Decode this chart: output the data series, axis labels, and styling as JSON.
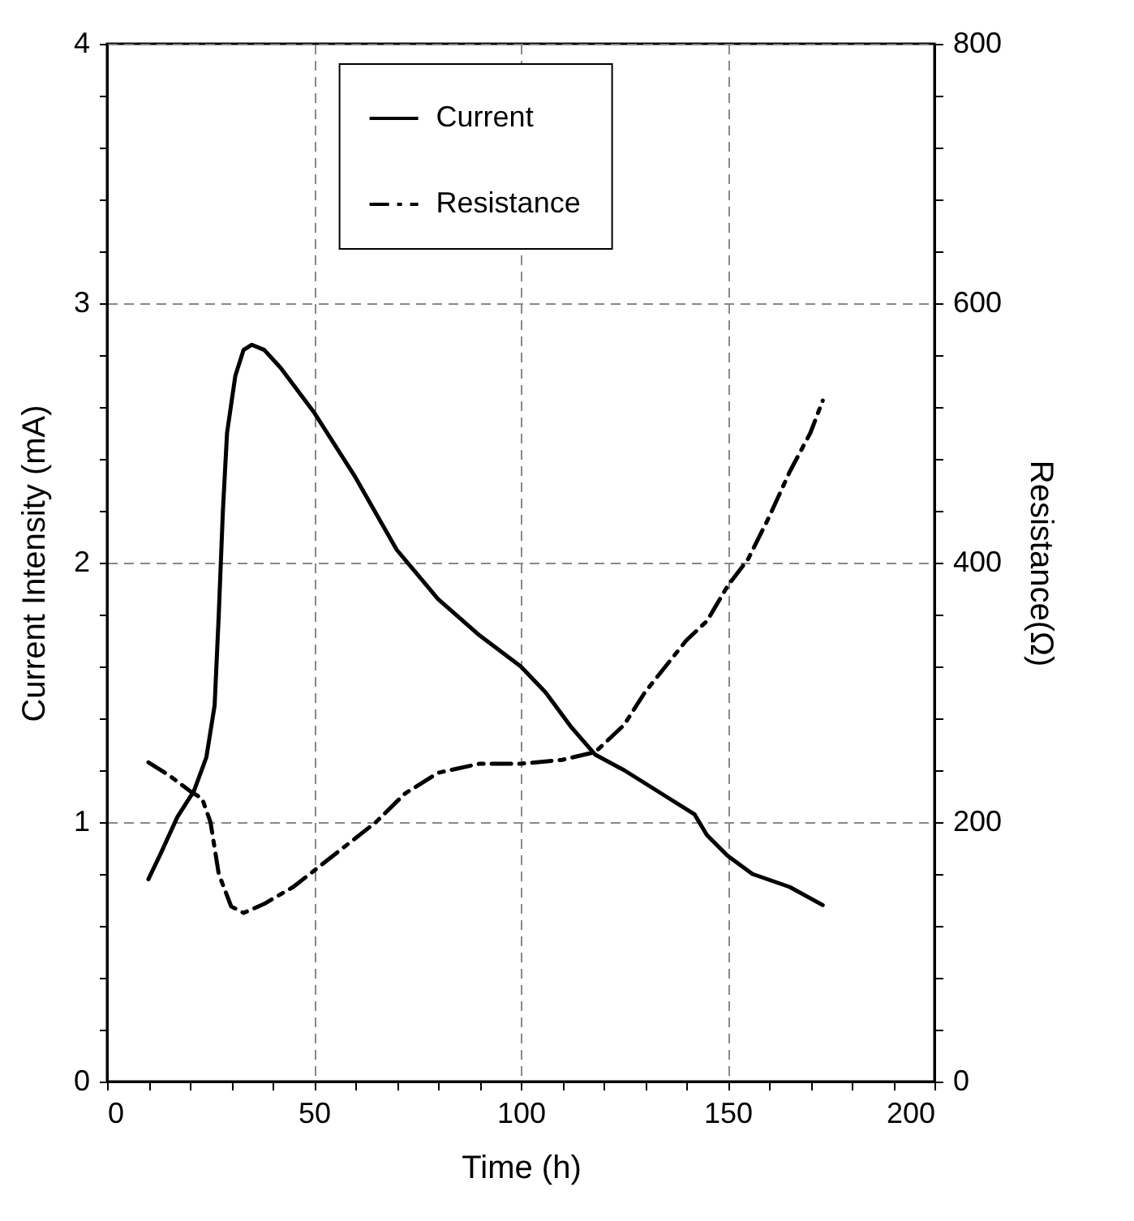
{
  "chart_data": {
    "type": "line",
    "xlabel": "Time (h)",
    "ylabel": "Current Intensity (mA)",
    "y2label": "Resistance(Ω)",
    "xlim": [
      0,
      200
    ],
    "xticks": [
      0,
      {
        "value": 10,
        "label": null
      },
      {
        "value": 20,
        "label": null
      },
      {
        "value": 30,
        "label": null
      },
      {
        "value": 40,
        "label": null
      },
      50,
      {
        "value": 60,
        "label": null
      },
      {
        "value": 70,
        "label": null
      },
      {
        "value": 80,
        "label": null
      },
      {
        "value": 90,
        "label": null
      },
      100,
      {
        "value": 110,
        "label": null
      },
      {
        "value": 120,
        "label": null
      },
      {
        "value": 130,
        "label": null
      },
      {
        "value": 140,
        "label": null
      },
      150,
      {
        "value": 160,
        "label": null
      },
      {
        "value": 170,
        "label": null
      },
      {
        "value": 180,
        "label": null
      },
      {
        "value": 190,
        "label": null
      },
      200
    ],
    "ylim": [
      0,
      4
    ],
    "yticks": [
      0,
      {
        "value": 0.2,
        "label": null
      },
      {
        "value": 0.4,
        "label": null
      },
      {
        "value": 0.6,
        "label": null
      },
      {
        "value": 0.8,
        "label": null
      },
      1,
      {
        "value": 1.2,
        "label": null
      },
      {
        "value": 1.4,
        "label": null
      },
      {
        "value": 1.6,
        "label": null
      },
      {
        "value": 1.8,
        "label": null
      },
      2,
      {
        "value": 2.2,
        "label": null
      },
      {
        "value": 2.4,
        "label": null
      },
      {
        "value": 2.6,
        "label": null
      },
      {
        "value": 2.8,
        "label": null
      },
      3,
      {
        "value": 3.2,
        "label": null
      },
      {
        "value": 3.4,
        "label": null
      },
      {
        "value": 3.6,
        "label": null
      },
      {
        "value": 3.8,
        "label": null
      },
      4
    ],
    "y2lim": [
      0,
      800
    ],
    "y2ticks": [
      0,
      {
        "value": 40,
        "label": null
      },
      {
        "value": 80,
        "label": null
      },
      {
        "value": 120,
        "label": null
      },
      {
        "value": 160,
        "label": null
      },
      200,
      {
        "value": 240,
        "label": null
      },
      {
        "value": 280,
        "label": null
      },
      {
        "value": 320,
        "label": null
      },
      {
        "value": 360,
        "label": null
      },
      400,
      {
        "value": 440,
        "label": null
      },
      {
        "value": 480,
        "label": null
      },
      {
        "value": 520,
        "label": null
      },
      {
        "value": 560,
        "label": null
      },
      600,
      {
        "value": 640,
        "label": null
      },
      {
        "value": 680,
        "label": null
      },
      {
        "value": 720,
        "label": null
      },
      {
        "value": 760,
        "label": null
      },
      800
    ],
    "grid": true,
    "legend": "top",
    "marker": "none",
    "series": [
      {
        "name": "Current",
        "color": "#000000",
        "line_style": "solid",
        "x": [
          10,
          13,
          17,
          21,
          24,
          26,
          27,
          28,
          29,
          31,
          33,
          35,
          38,
          42,
          50,
          60,
          70,
          80,
          90,
          100,
          106,
          112,
          118,
          125,
          135,
          142,
          145,
          150,
          156,
          165,
          173
        ],
        "values": [
          0.78,
          0.88,
          1.02,
          1.12,
          1.25,
          1.45,
          1.8,
          2.2,
          2.5,
          2.72,
          2.82,
          2.84,
          2.82,
          2.75,
          2.58,
          2.33,
          2.05,
          1.86,
          1.72,
          1.6,
          1.5,
          1.37,
          1.26,
          1.2,
          1.1,
          1.03,
          0.95,
          0.87,
          0.8,
          0.75,
          0.68
        ]
      },
      {
        "name": "Resistance",
        "color": "#000000",
        "line_style": "dashdot",
        "axis": "y2",
        "x": [
          10,
          15,
          20,
          23,
          25,
          27,
          30,
          33,
          38,
          45,
          55,
          65,
          72,
          80,
          90,
          100,
          110,
          118,
          125,
          130,
          140,
          145,
          150,
          155,
          160,
          165,
          170,
          173
        ],
        "values": [
          246,
          236,
          224,
          218,
          200,
          160,
          135,
          130,
          137,
          150,
          175,
          200,
          222,
          238,
          245,
          245,
          248,
          254,
          275,
          300,
          340,
          355,
          382,
          403,
          435,
          470,
          500,
          525
        ]
      }
    ]
  }
}
